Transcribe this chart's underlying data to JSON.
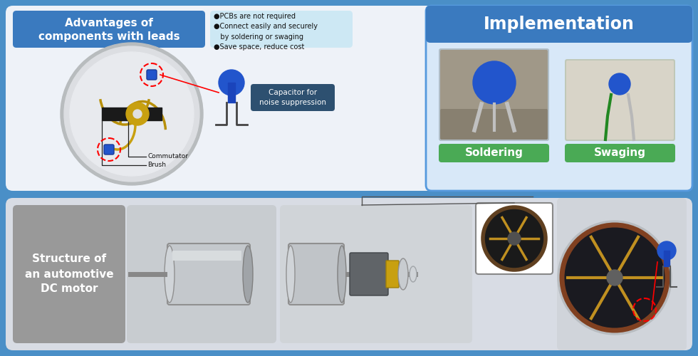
{
  "bg_color": "#4a8fc7",
  "top_panel_bg": "#eef2f8",
  "bottom_panel_bg": "#e0e3e8",
  "adv_title_bg": "#3a7abf",
  "adv_title_text": "Advantages of\ncomponents with leads",
  "adv_bullets_bg": "#cde8f4",
  "adv_bullets_text": "●PCBs are not required\n●Connect easily and securely\n   by soldering or swaging\n●Save space, reduce cost",
  "impl_title_bg": "#3a7abf",
  "impl_title_text": "Implementation",
  "soldering_label": "Soldering",
  "swaging_label": "Swaging",
  "label_bg": "#4aaa55",
  "cap_label_bg": "#2d5070",
  "cap_label_text": "Capacitor for\nnoise suppression",
  "commutator_text": "Commutator",
  "brush_text": "Brush",
  "struct_title": "Structure of\nan automotive\nDC motor",
  "struct_bg": "#999999"
}
